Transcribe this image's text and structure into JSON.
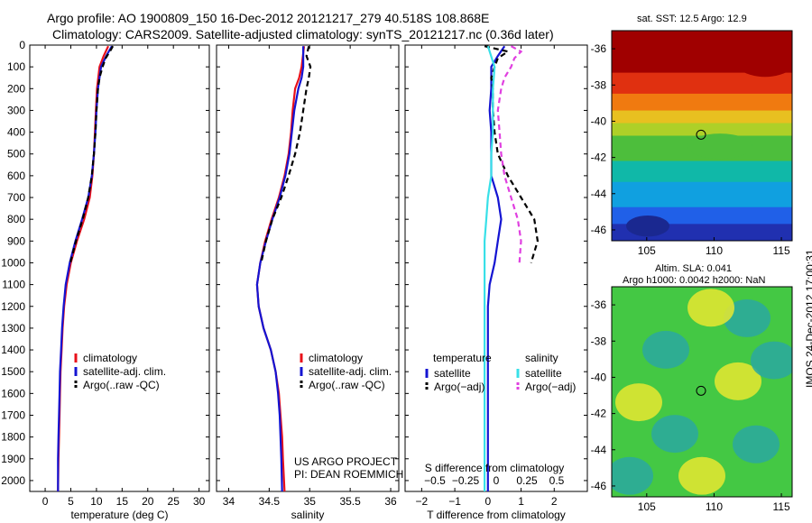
{
  "header": {
    "line1": "Argo profile: AO 1900809_150 16-Dec-2012 20121217_279 40.518S 108.868E",
    "line2": "Climatology: CARS2009. Satellite-adjusted climatology: synTS_20121217.nc (0.36d later)"
  },
  "side": {
    "sst_title": "sat. SST: 12.5 Argo: 12.9",
    "sla_line1": "Altim. SLA: 0.041",
    "sla_line2": "Argo h1000: 0.0042 h2000: NaN",
    "stamp": "IMOS 24-Dec-2012 17:00:31"
  },
  "colors": {
    "climatology": "#e8101a",
    "satellite": "#1414d2",
    "argo": "#000000",
    "cyan": "#38e0e8",
    "magenta": "#e040e0"
  },
  "chart_data": [
    {
      "type": "line",
      "xlabel": "temperature (deg C)",
      "ylabel": "",
      "xlim": [
        -3,
        32
      ],
      "ylim": [
        2050,
        0
      ],
      "xticks": [
        "0",
        "5",
        "10",
        "15",
        "20",
        "25",
        "30"
      ],
      "yticks": [
        "0",
        "100",
        "200",
        "300",
        "400",
        "500",
        "600",
        "700",
        "800",
        "900",
        "1000",
        "1100",
        "1200",
        "1300",
        "1400",
        "1500",
        "1600",
        "1700",
        "1800",
        "1900",
        "2000"
      ],
      "legend": [
        "climatology",
        "satellite-adj. clim.",
        "Argo(..raw -QC)"
      ],
      "series": [
        {
          "name": "climatology",
          "color_key": "climatology",
          "dash": false,
          "depth": [
            5,
            50,
            100,
            200,
            300,
            400,
            500,
            600,
            700,
            800,
            900,
            1000,
            1100,
            1200,
            1300,
            1400,
            1500,
            1600,
            1700,
            1800,
            1900,
            2050
          ],
          "values": [
            12.3,
            11.4,
            10.6,
            10.1,
            9.9,
            9.7,
            9.5,
            9.2,
            8.7,
            7.6,
            6.2,
            5.0,
            4.2,
            3.7,
            3.4,
            3.2,
            3.0,
            2.9,
            2.8,
            2.7,
            2.6,
            2.5
          ]
        },
        {
          "name": "satellite-adj. clim.",
          "color_key": "satellite",
          "dash": false,
          "depth": [
            5,
            50,
            100,
            200,
            300,
            400,
            500,
            600,
            700,
            800,
            900,
            1000,
            1100,
            1200,
            1300,
            1400,
            1500,
            1600,
            1700,
            1800,
            1900,
            2050
          ],
          "values": [
            13.0,
            11.9,
            10.9,
            10.3,
            10.0,
            9.8,
            9.5,
            9.1,
            8.4,
            7.2,
            5.9,
            4.8,
            4.0,
            3.6,
            3.3,
            3.1,
            2.9,
            2.8,
            2.7,
            2.6,
            2.5,
            2.5
          ]
        },
        {
          "name": "Argo(..raw -QC)",
          "color_key": "argo",
          "dash": true,
          "depth": [
            5,
            30,
            60,
            100,
            150,
            200,
            300,
            400,
            500,
            600,
            700,
            800,
            900,
            1000
          ],
          "values": [
            13.2,
            12.6,
            11.8,
            11.2,
            10.6,
            10.3,
            10.0,
            9.8,
            9.5,
            9.1,
            8.4,
            7.3,
            6.0,
            4.9
          ]
        }
      ]
    },
    {
      "type": "line",
      "xlabel": "salinity",
      "ylabel": "",
      "xlim": [
        33.85,
        36.1
      ],
      "ylim": [
        2050,
        0
      ],
      "xticks": [
        "34",
        "34.5",
        "35",
        "35.5",
        "36"
      ],
      "legend": [
        "climatology",
        "satellite-adj. clim.",
        "Argo(..raw -QC)"
      ],
      "series": [
        {
          "name": "climatology",
          "color_key": "climatology",
          "dash": false,
          "depth": [
            5,
            100,
            150,
            200,
            300,
            400,
            500,
            600,
            700,
            800,
            900,
            1000,
            1100,
            1200,
            1300,
            1400,
            1500,
            1600,
            1700,
            1800,
            1900,
            2050
          ],
          "values": [
            34.93,
            34.9,
            34.87,
            34.82,
            34.79,
            34.77,
            34.74,
            34.69,
            34.62,
            34.53,
            34.45,
            34.39,
            34.35,
            34.37,
            34.43,
            34.52,
            34.58,
            34.62,
            34.64,
            34.66,
            34.67,
            34.69
          ]
        },
        {
          "name": "satellite-adj. clim.",
          "color_key": "satellite",
          "dash": false,
          "depth": [
            5,
            100,
            150,
            200,
            300,
            400,
            500,
            600,
            700,
            800,
            900,
            1000,
            1100,
            1200,
            1300,
            1400,
            1500,
            1600,
            1700,
            1800,
            1900,
            2050
          ],
          "values": [
            34.92,
            34.92,
            34.9,
            34.86,
            34.81,
            34.78,
            34.75,
            34.7,
            34.63,
            34.54,
            34.46,
            34.39,
            34.35,
            34.37,
            34.43,
            34.52,
            34.58,
            34.61,
            34.63,
            34.64,
            34.65,
            34.66
          ]
        },
        {
          "name": "Argo(..raw -QC)",
          "color_key": "argo",
          "dash": true,
          "depth": [
            5,
            50,
            100,
            150,
            200,
            300,
            400,
            500,
            600,
            700,
            800,
            900,
            1000
          ],
          "values": [
            34.99,
            34.96,
            35.01,
            34.99,
            34.96,
            34.92,
            34.88,
            34.82,
            34.74,
            34.65,
            34.54,
            34.46,
            34.4
          ]
        }
      ]
    },
    {
      "type": "line",
      "xlabel": "T difference from climatology",
      "xlabel_top": "S difference from climatology",
      "ylabel": "",
      "xlim": [
        -2.5,
        3.0
      ],
      "ylim": [
        2050,
        0
      ],
      "xticks": [
        "−2",
        "−1",
        "0",
        "1",
        "2"
      ],
      "xticks_top": [
        "−0.5",
        "−0.25",
        "0",
        "0.25",
        "0.5"
      ],
      "legend_left_title": "temperature",
      "legend_right_title": "salinity",
      "legend": [
        "satellite",
        "Argo(−adj)",
        "satellite",
        "Argo(−adj)"
      ],
      "series": [
        {
          "name": "satellite",
          "group": "temperature",
          "color_key": "satellite",
          "dash": false,
          "depth": [
            5,
            50,
            100,
            200,
            300,
            400,
            500,
            600,
            700,
            800,
            900,
            1000,
            1100,
            1200,
            1300,
            1400,
            1500,
            1600,
            1700,
            1800,
            1900,
            2050
          ],
          "values": [
            0.5,
            0.3,
            0.1,
            0.1,
            0.05,
            0.1,
            0.1,
            0.1,
            0.3,
            0.4,
            0.3,
            0.2,
            0.05,
            0.0,
            0.0,
            0.0,
            0.0,
            0.0,
            0.0,
            0.0,
            0.0,
            0.0
          ]
        },
        {
          "name": "Argo(−adj)",
          "group": "temperature",
          "color_key": "argo",
          "dash": true,
          "depth": [
            5,
            30,
            60,
            100,
            150,
            200,
            300,
            400,
            500,
            600,
            700,
            800,
            900,
            1000
          ],
          "values": [
            -0.1,
            0.6,
            0.3,
            0.2,
            0.1,
            0.15,
            0.15,
            0.2,
            0.3,
            0.6,
            1.0,
            1.4,
            1.5,
            1.3
          ]
        },
        {
          "name": "satellite",
          "group": "salinity",
          "color_key": "cyan",
          "dash": false,
          "depth": [
            5,
            100,
            200,
            300,
            400,
            500,
            600,
            700,
            800,
            900,
            1000,
            1100,
            1200,
            1300,
            1400,
            1500,
            1600,
            1700,
            1800,
            1900,
            2050
          ],
          "values": [
            0.0,
            0.2,
            0.15,
            0.15,
            0.15,
            0.1,
            0.1,
            0.0,
            -0.05,
            -0.1,
            -0.1,
            -0.1,
            -0.1,
            -0.1,
            -0.1,
            -0.1,
            -0.1,
            -0.1,
            -0.1,
            -0.1,
            -0.1
          ]
        },
        {
          "name": "Argo(−adj)",
          "group": "salinity",
          "color_key": "magenta",
          "dash": true,
          "depth": [
            5,
            30,
            60,
            100,
            150,
            200,
            300,
            400,
            500,
            600,
            700,
            800,
            900,
            1000
          ],
          "values": [
            0.7,
            1.0,
            0.8,
            0.7,
            0.5,
            0.4,
            0.3,
            0.35,
            0.4,
            0.5,
            0.7,
            0.9,
            1.0,
            0.95
          ]
        }
      ]
    }
  ],
  "maps": {
    "sst": {
      "xticks": [
        "105",
        "110",
        "115"
      ],
      "yticks": [
        "-36",
        "-38",
        "-40",
        "-42",
        "-44",
        "-46"
      ]
    },
    "sla": {
      "xticks": [
        "105",
        "110",
        "115"
      ],
      "yticks": [
        "-36",
        "-38",
        "-40",
        "-42",
        "-44",
        "-46"
      ]
    }
  },
  "footer": {
    "credit_line1": "US ARGO PROJECT",
    "credit_line2": "PI: DEAN ROEMMICH"
  }
}
